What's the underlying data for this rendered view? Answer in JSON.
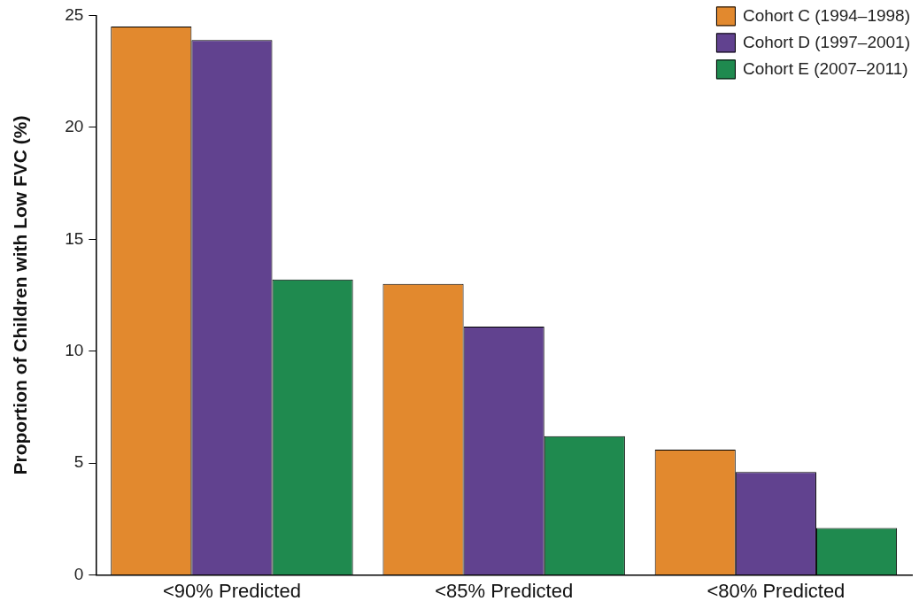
{
  "chart_data": {
    "type": "bar",
    "ylabel": "Proportion of Children with Low FVC (%)",
    "categories": [
      "<90% Predicted",
      "<85% Predicted",
      "<80% Predicted"
    ],
    "series": [
      {
        "name": "Cohort C (1994–1998)",
        "color": "#e2892e",
        "values": [
          24.5,
          13.0,
          5.6
        ]
      },
      {
        "name": "Cohort D (1997–2001)",
        "color": "#61428f",
        "values": [
          23.9,
          11.1,
          4.6
        ]
      },
      {
        "name": "Cohort E (2007–2011)",
        "color": "#1f8a4f",
        "values": [
          13.2,
          6.2,
          2.1
        ]
      }
    ],
    "ylim": [
      0,
      25
    ],
    "yticks": [
      0,
      5,
      10,
      15,
      20,
      25
    ],
    "grid": false,
    "legend": "top right"
  }
}
